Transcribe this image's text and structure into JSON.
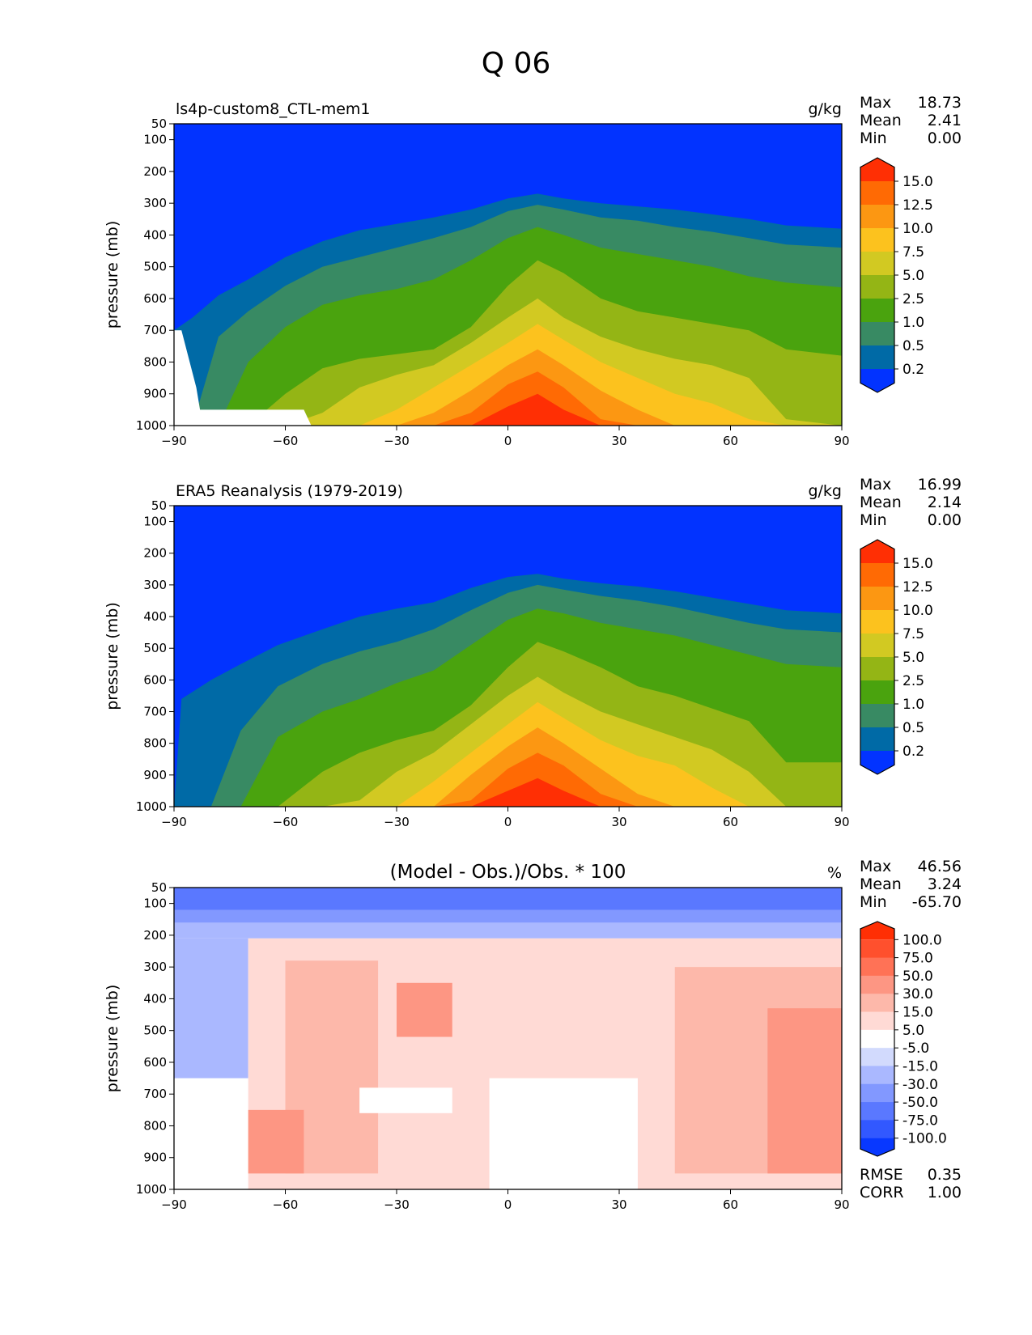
{
  "figure": {
    "title": "Q 06"
  },
  "chart_data": [
    {
      "type": "contour",
      "title": "ls4p-custom8_CTL-mem1",
      "units": "g/kg",
      "ylabel": "pressure (mb)",
      "xlim": [
        -90,
        90
      ],
      "ylim": [
        1000,
        50
      ],
      "xticks": [
        -90,
        -60,
        -30,
        0,
        30,
        60,
        90
      ],
      "yticks": [
        50,
        100,
        200,
        300,
        400,
        500,
        600,
        700,
        800,
        900,
        1000
      ],
      "stats": [
        {
          "label": "Max",
          "value": "18.73"
        },
        {
          "label": "Mean",
          "value": "2.41"
        },
        {
          "label": "Min",
          "value": "0.00"
        }
      ],
      "levels": [
        0.2,
        0.5,
        1.0,
        2.5,
        5.0,
        7.5,
        10.0,
        12.5,
        15.0
      ],
      "level_labels": [
        "0.2",
        "0.5",
        "1.0",
        "2.5",
        "5.0",
        "7.5",
        "10.0",
        "12.5",
        "15.0"
      ],
      "colors": [
        "#0233ff",
        "#006aa6",
        "#388a63",
        "#4aa30e",
        "#94b515",
        "#d2c922",
        "#fcc21e",
        "#fc9712",
        "#ff6a04",
        "#ff2f04"
      ],
      "profile": [
        [
          -90,
          700,
          700,
          1000,
          1000,
          1000,
          1000,
          1000,
          1000,
          1000
        ],
        [
          -85,
          660,
          1000,
          1000,
          1000,
          1000,
          1000,
          1000,
          1000,
          1000
        ],
        [
          -78,
          590,
          720,
          1000,
          1000,
          1000,
          1000,
          1000,
          1000,
          1000
        ],
        [
          -70,
          540,
          640,
          800,
          1000,
          1000,
          1000,
          1000,
          1000,
          1000
        ],
        [
          -60,
          470,
          560,
          690,
          900,
          1000,
          1000,
          1000,
          1000,
          1000
        ],
        [
          -50,
          420,
          500,
          620,
          820,
          960,
          1000,
          1000,
          1000,
          1000
        ],
        [
          -40,
          385,
          470,
          590,
          790,
          880,
          1000,
          1000,
          1000,
          1000
        ],
        [
          -30,
          365,
          440,
          570,
          775,
          840,
          950,
          1000,
          1000,
          1000
        ],
        [
          -20,
          345,
          410,
          540,
          760,
          810,
          880,
          960,
          1000,
          1000
        ],
        [
          -10,
          320,
          375,
          480,
          690,
          740,
          810,
          890,
          960,
          1000
        ],
        [
          0,
          285,
          325,
          410,
          560,
          660,
          740,
          810,
          870,
          940
        ],
        [
          8,
          270,
          305,
          375,
          480,
          600,
          680,
          760,
          830,
          900
        ],
        [
          15,
          285,
          320,
          400,
          520,
          660,
          730,
          810,
          880,
          950
        ],
        [
          25,
          300,
          345,
          440,
          600,
          720,
          800,
          890,
          980,
          1000
        ],
        [
          35,
          310,
          355,
          460,
          640,
          760,
          850,
          950,
          1000,
          1000
        ],
        [
          45,
          320,
          375,
          480,
          660,
          790,
          900,
          1000,
          1000,
          1000
        ],
        [
          55,
          335,
          390,
          500,
          680,
          810,
          930,
          1000,
          1000,
          1000
        ],
        [
          65,
          350,
          410,
          530,
          700,
          850,
          980,
          1000,
          1000,
          1000
        ],
        [
          75,
          370,
          430,
          550,
          760,
          980,
          1000,
          1000,
          1000,
          1000
        ],
        [
          90,
          380,
          440,
          565,
          780,
          1000,
          1000,
          1000,
          1000,
          1000
        ]
      ]
    },
    {
      "type": "contour",
      "title": "ERA5 Reanalysis (1979-2019)",
      "units": "g/kg",
      "ylabel": "pressure (mb)",
      "xlim": [
        -90,
        90
      ],
      "ylim": [
        1000,
        50
      ],
      "xticks": [
        -90,
        -60,
        -30,
        0,
        30,
        60,
        90
      ],
      "yticks": [
        50,
        100,
        200,
        300,
        400,
        500,
        600,
        700,
        800,
        900,
        1000
      ],
      "stats": [
        {
          "label": "Max",
          "value": "16.99"
        },
        {
          "label": "Mean",
          "value": "2.14"
        },
        {
          "label": "Min",
          "value": "0.00"
        }
      ],
      "levels": [
        0.2,
        0.5,
        1.0,
        2.5,
        5.0,
        7.5,
        10.0,
        12.5,
        15.0
      ],
      "level_labels": [
        "0.2",
        "0.5",
        "1.0",
        "2.5",
        "5.0",
        "7.5",
        "10.0",
        "12.5",
        "15.0"
      ],
      "colors": [
        "#0233ff",
        "#006aa6",
        "#388a63",
        "#4aa30e",
        "#94b515",
        "#d2c922",
        "#fcc21e",
        "#fc9712",
        "#ff6a04",
        "#ff2f04"
      ],
      "profile": [
        [
          -90,
          1000,
          1000,
          1000,
          1000,
          1000,
          1000,
          1000,
          1000,
          1000
        ],
        [
          -88,
          660,
          1000,
          1000,
          1000,
          1000,
          1000,
          1000,
          1000,
          1000
        ],
        [
          -80,
          600,
          1000,
          1000,
          1000,
          1000,
          1000,
          1000,
          1000,
          1000
        ],
        [
          -72,
          550,
          760,
          1000,
          1000,
          1000,
          1000,
          1000,
          1000,
          1000
        ],
        [
          -62,
          490,
          620,
          780,
          1000,
          1000,
          1000,
          1000,
          1000,
          1000
        ],
        [
          -50,
          440,
          550,
          700,
          890,
          1000,
          1000,
          1000,
          1000,
          1000
        ],
        [
          -40,
          400,
          510,
          660,
          830,
          980,
          1000,
          1000,
          1000,
          1000
        ],
        [
          -30,
          375,
          480,
          610,
          790,
          890,
          1000,
          1000,
          1000,
          1000
        ],
        [
          -20,
          355,
          440,
          570,
          760,
          830,
          920,
          1000,
          1000,
          1000
        ],
        [
          -10,
          310,
          380,
          490,
          680,
          740,
          830,
          900,
          980,
          1000
        ],
        [
          0,
          275,
          325,
          410,
          560,
          650,
          740,
          810,
          880,
          950
        ],
        [
          8,
          265,
          300,
          375,
          480,
          590,
          670,
          750,
          830,
          910
        ],
        [
          15,
          280,
          315,
          390,
          510,
          640,
          720,
          800,
          870,
          950
        ],
        [
          25,
          295,
          335,
          420,
          560,
          700,
          790,
          880,
          960,
          1000
        ],
        [
          35,
          305,
          350,
          440,
          620,
          740,
          840,
          960,
          1000,
          1000
        ],
        [
          45,
          320,
          370,
          460,
          650,
          780,
          870,
          1000,
          1000,
          1000
        ],
        [
          55,
          340,
          395,
          490,
          690,
          820,
          940,
          1000,
          1000,
          1000
        ],
        [
          65,
          360,
          420,
          520,
          730,
          890,
          1000,
          1000,
          1000,
          1000
        ],
        [
          75,
          380,
          440,
          550,
          860,
          1000,
          1000,
          1000,
          1000,
          1000
        ],
        [
          90,
          390,
          450,
          560,
          860,
          1000,
          1000,
          1000,
          1000,
          1000
        ]
      ]
    },
    {
      "type": "contour",
      "title": "(Model - Obs.)/Obs. * 100",
      "units": "%",
      "ylabel": "pressure (mb)",
      "xlim": [
        -90,
        90
      ],
      "ylim": [
        1000,
        50
      ],
      "xticks": [
        -90,
        -60,
        -30,
        0,
        30,
        60,
        90
      ],
      "yticks": [
        50,
        100,
        200,
        300,
        400,
        500,
        600,
        700,
        800,
        900,
        1000
      ],
      "stats": [
        {
          "label": "Max",
          "value": "46.56"
        },
        {
          "label": "Mean",
          "value": "3.24"
        },
        {
          "label": "Min",
          "value": "-65.70"
        }
      ],
      "footer_stats": [
        {
          "label": "RMSE",
          "value": "0.35"
        },
        {
          "label": "CORR",
          "value": "1.00"
        }
      ],
      "levels": [
        -100,
        -75,
        -50,
        -30,
        -15,
        -5,
        5,
        15,
        30,
        50,
        75,
        100
      ],
      "level_labels": [
        "-100.0",
        "-75.0",
        "-50.0",
        "-30.0",
        "-15.0",
        "-5.0",
        "5.0",
        "15.0",
        "30.0",
        "50.0",
        "75.0",
        "100.0"
      ],
      "colors": [
        "#0838ff",
        "#3258ff",
        "#5a78ff",
        "#8298ff",
        "#aab8ff",
        "#d2dafd",
        "#ffffff",
        "#ffdad5",
        "#fdb8aa",
        "#fd9683",
        "#ff7256",
        "#ff502d",
        "#ff2f04"
      ],
      "regions": [
        {
          "level": "-15.0",
          "lat_range": [
            -90,
            90
          ],
          "p_range": [
            50,
            210
          ]
        },
        {
          "level": "-30.0",
          "lat_range": [
            -90,
            90
          ],
          "p_range": [
            50,
            160
          ]
        },
        {
          "level": "-50.0",
          "lat_range": [
            -90,
            90
          ],
          "p_range": [
            50,
            120
          ]
        },
        {
          "level": "-15.0",
          "lat_range": [
            -90,
            -70
          ],
          "p_range": [
            210,
            650
          ]
        },
        {
          "level": "15.0",
          "lat_range": [
            -70,
            90
          ],
          "p_range": [
            210,
            1000
          ]
        },
        {
          "level": "30.0",
          "lat_range": [
            -60,
            -35
          ],
          "p_range": [
            280,
            950
          ]
        },
        {
          "level": "50.0",
          "lat_range": [
            -70,
            -55
          ],
          "p_range": [
            750,
            950
          ]
        },
        {
          "level": "50.0",
          "lat_range": [
            -30,
            -15
          ],
          "p_range": [
            350,
            520
          ]
        },
        {
          "level": "30.0",
          "lat_range": [
            45,
            90
          ],
          "p_range": [
            300,
            950
          ]
        },
        {
          "level": "50.0",
          "lat_range": [
            70,
            90
          ],
          "p_range": [
            430,
            950
          ]
        },
        {
          "level": "5.0",
          "lat_range": [
            -5,
            35
          ],
          "p_range": [
            650,
            1000
          ]
        },
        {
          "level": "5.0",
          "lat_range": [
            -40,
            -15
          ],
          "p_range": [
            680,
            760
          ]
        }
      ]
    }
  ]
}
